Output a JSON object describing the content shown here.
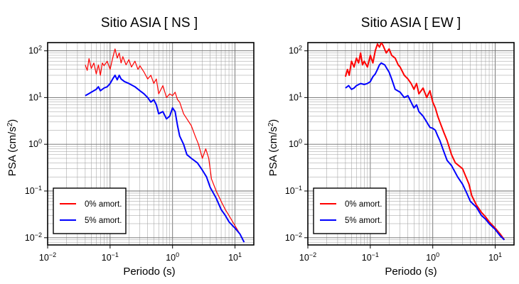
{
  "chart_data": [
    {
      "type": "line",
      "title": "Sitio ASIA [ NS ]",
      "xlabel": "Periodo (s)",
      "ylabel_base": "PSA (cm/s",
      "ylabel_sup": "2",
      "ylabel_close": ")",
      "x_scale": "log",
      "y_scale": "log",
      "xlim": [
        0.01,
        20
      ],
      "ylim": [
        0.007,
        150
      ],
      "x_ticks": [
        {
          "v": 0.01,
          "b": "10",
          "e": "−2"
        },
        {
          "v": 0.1,
          "b": "10",
          "e": "−1"
        },
        {
          "v": 1,
          "b": "10",
          "e": "0"
        },
        {
          "v": 10,
          "b": "10",
          "e": "1"
        }
      ],
      "y_ticks": [
        {
          "v": 0.01,
          "t": "10",
          "e": "−2"
        },
        {
          "v": 0.1,
          "t": "10",
          "e": "−1"
        },
        {
          "v": 1,
          "t": "10",
          "e": "0"
        },
        {
          "v": 10,
          "t": "10",
          "e": "1"
        },
        {
          "v": 100,
          "t": "10",
          "e": "2"
        }
      ],
      "grid": true,
      "legend": "bottom-left",
      "series": [
        {
          "name": "0% amort.",
          "color": "#ff0000",
          "width": 1.2,
          "x": [
            0.04,
            0.043,
            0.046,
            0.05,
            0.055,
            0.06,
            0.065,
            0.07,
            0.075,
            0.08,
            0.09,
            0.1,
            0.11,
            0.12,
            0.13,
            0.14,
            0.15,
            0.16,
            0.18,
            0.2,
            0.22,
            0.25,
            0.28,
            0.3,
            0.35,
            0.4,
            0.45,
            0.5,
            0.55,
            0.6,
            0.7,
            0.8,
            0.9,
            1.0,
            1.1,
            1.2,
            1.3,
            1.5,
            1.7,
            2.0,
            2.3,
            2.6,
            3.0,
            3.4,
            3.8,
            4.2,
            5.0,
            6.0,
            7.0,
            8.0,
            10.0,
            12.0,
            14.0
          ],
          "y": [
            50,
            38,
            68,
            42,
            55,
            32,
            50,
            30,
            55,
            48,
            60,
            40,
            70,
            110,
            70,
            90,
            55,
            75,
            50,
            65,
            45,
            60,
            40,
            48,
            35,
            25,
            30,
            20,
            25,
            12,
            18,
            10,
            12,
            11,
            13,
            9,
            8,
            4.5,
            3.5,
            2.5,
            1.5,
            1.0,
            0.5,
            0.8,
            0.5,
            0.18,
            0.1,
            0.06,
            0.04,
            0.03,
            0.018,
            0.012,
            0.008
          ]
        },
        {
          "name": "5% amort.",
          "color": "#0000ff",
          "width": 2.0,
          "x": [
            0.04,
            0.045,
            0.05,
            0.055,
            0.06,
            0.065,
            0.07,
            0.08,
            0.09,
            0.1,
            0.11,
            0.12,
            0.13,
            0.14,
            0.15,
            0.17,
            0.2,
            0.25,
            0.3,
            0.35,
            0.4,
            0.45,
            0.5,
            0.55,
            0.6,
            0.7,
            0.8,
            0.9,
            1.0,
            1.1,
            1.2,
            1.3,
            1.5,
            1.7,
            2.0,
            2.5,
            3.0,
            3.5,
            4.0,
            5.0,
            6.0,
            7.0,
            8.0,
            10.0,
            12.0,
            14.0
          ],
          "y": [
            11,
            12,
            13,
            14,
            15,
            17,
            14,
            16,
            17,
            20,
            25,
            30,
            24,
            30,
            25,
            22,
            20,
            17,
            14,
            12,
            10,
            8,
            9,
            7,
            4.5,
            5,
            3.5,
            4,
            6,
            5,
            2.5,
            1.5,
            1.0,
            0.6,
            0.5,
            0.4,
            0.28,
            0.2,
            0.12,
            0.07,
            0.04,
            0.03,
            0.022,
            0.016,
            0.012,
            0.008
          ]
        }
      ]
    },
    {
      "type": "line",
      "title": "Sitio ASIA [ EW ]",
      "xlabel": "Periodo (s)",
      "ylabel_base": "PSA (cm/s",
      "ylabel_sup": "2",
      "ylabel_close": ")",
      "x_scale": "log",
      "y_scale": "log",
      "xlim": [
        0.01,
        20
      ],
      "ylim": [
        0.007,
        150
      ],
      "x_ticks": [
        {
          "v": 0.01,
          "b": "10",
          "e": "−2"
        },
        {
          "v": 0.1,
          "b": "10",
          "e": "−1"
        },
        {
          "v": 1,
          "b": "10",
          "e": "0"
        },
        {
          "v": 10,
          "b": "10",
          "e": "1"
        }
      ],
      "y_ticks": [
        {
          "v": 0.01,
          "t": "10",
          "e": "−2"
        },
        {
          "v": 0.1,
          "t": "10",
          "e": "−1"
        },
        {
          "v": 1,
          "t": "10",
          "e": "0"
        },
        {
          "v": 10,
          "t": "10",
          "e": "1"
        },
        {
          "v": 100,
          "t": "10",
          "e": "2"
        }
      ],
      "grid": true,
      "legend": "bottom-left",
      "series": [
        {
          "name": "0% amort.",
          "color": "#ff0000",
          "width": 2.0,
          "x": [
            0.04,
            0.043,
            0.046,
            0.05,
            0.055,
            0.06,
            0.065,
            0.07,
            0.075,
            0.08,
            0.09,
            0.1,
            0.11,
            0.12,
            0.13,
            0.14,
            0.15,
            0.16,
            0.18,
            0.2,
            0.22,
            0.25,
            0.28,
            0.3,
            0.35,
            0.4,
            0.45,
            0.5,
            0.55,
            0.6,
            0.7,
            0.8,
            0.9,
            1.0,
            1.1,
            1.2,
            1.3,
            1.5,
            1.7,
            2.0,
            2.3,
            2.6,
            3.0,
            3.4,
            3.8,
            4.2,
            5.0,
            6.0,
            7.0,
            8.0,
            10.0,
            12.0,
            14.0
          ],
          "y": [
            28,
            40,
            30,
            60,
            45,
            70,
            55,
            90,
            50,
            60,
            45,
            80,
            55,
            100,
            140,
            120,
            150,
            130,
            90,
            110,
            80,
            70,
            50,
            45,
            30,
            25,
            20,
            15,
            20,
            12,
            16,
            10,
            14,
            8,
            6,
            4,
            3,
            1.8,
            1.2,
            0.6,
            0.4,
            0.35,
            0.3,
            0.2,
            0.14,
            0.08,
            0.05,
            0.035,
            0.028,
            0.022,
            0.016,
            0.012,
            0.009
          ]
        },
        {
          "name": "5% amort.",
          "color": "#0000ff",
          "width": 2.0,
          "x": [
            0.04,
            0.045,
            0.05,
            0.055,
            0.06,
            0.07,
            0.08,
            0.09,
            0.1,
            0.11,
            0.12,
            0.13,
            0.14,
            0.15,
            0.17,
            0.2,
            0.22,
            0.25,
            0.3,
            0.35,
            0.4,
            0.45,
            0.5,
            0.55,
            0.6,
            0.7,
            0.8,
            0.9,
            1.0,
            1.1,
            1.2,
            1.3,
            1.5,
            1.7,
            2.0,
            2.5,
            3.0,
            3.5,
            4.0,
            5.0,
            6.0,
            7.0,
            8.0,
            10.0,
            12.0,
            14.0
          ],
          "y": [
            16,
            18,
            15,
            16,
            18,
            20,
            19,
            20,
            22,
            28,
            32,
            40,
            50,
            55,
            50,
            35,
            25,
            15,
            13,
            10,
            11,
            8,
            6,
            7,
            5,
            4,
            3,
            2.3,
            2.2,
            2.0,
            1.5,
            1.2,
            0.7,
            0.45,
            0.35,
            0.2,
            0.14,
            0.09,
            0.06,
            0.045,
            0.03,
            0.025,
            0.02,
            0.015,
            0.011,
            0.009
          ]
        }
      ]
    }
  ]
}
